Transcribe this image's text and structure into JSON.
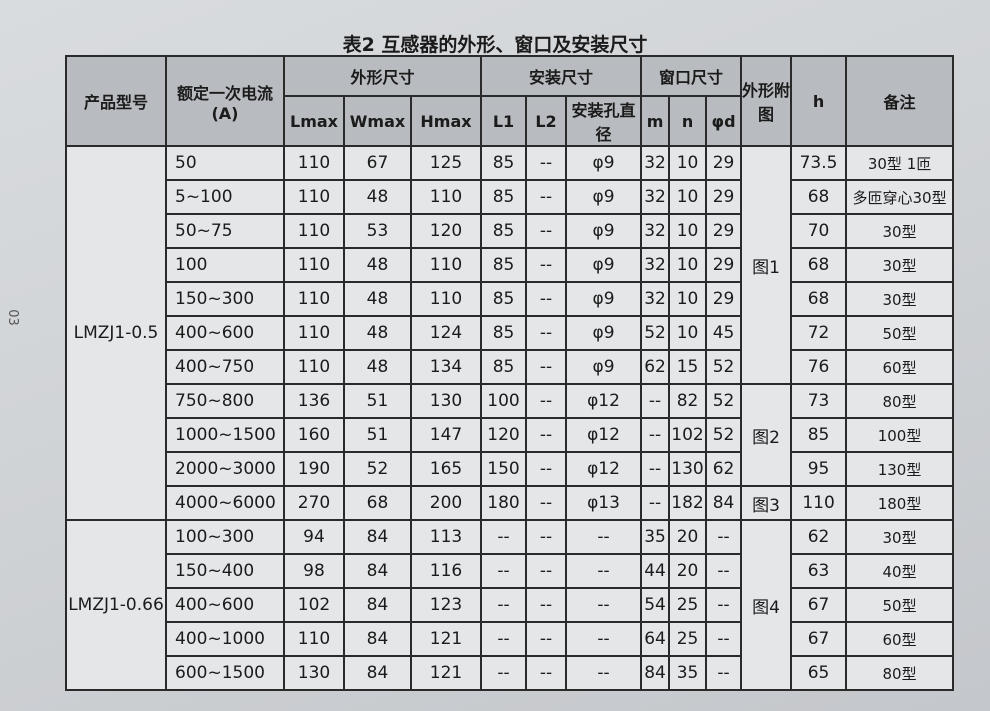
{
  "title": "表2 互感器的外形、窗口及安装尺寸",
  "page_number": "03",
  "headers": {
    "model": "产品型号",
    "current": "额定一次电流(A)",
    "outline": "外形尺寸",
    "lmax": "Lmax",
    "wmax": "Wmax",
    "hmax": "Hmax",
    "mount": "安装尺寸",
    "l1": "L1",
    "l2": "L2",
    "hole": "安装孔直径",
    "window": "窗口尺寸",
    "m": "m",
    "n": "n",
    "d": "φd",
    "figure": "外形附图",
    "h": "h",
    "note": "备注"
  },
  "groups": [
    {
      "model": "LMZJ1-0.5",
      "rows": [
        {
          "current": "50",
          "lmax": "110",
          "wmax": "67",
          "hmax": "125",
          "l1": "85",
          "l2": "--",
          "hole": "φ9",
          "m": "32",
          "n": "10",
          "d": "29",
          "h": "73.5",
          "note": "30型 1匝"
        },
        {
          "current": "5~100",
          "lmax": "110",
          "wmax": "48",
          "hmax": "110",
          "l1": "85",
          "l2": "--",
          "hole": "φ9",
          "m": "32",
          "n": "10",
          "d": "29",
          "h": "68",
          "note": "多匝穿心30型"
        },
        {
          "current": "50~75",
          "lmax": "110",
          "wmax": "53",
          "hmax": "120",
          "l1": "85",
          "l2": "--",
          "hole": "φ9",
          "m": "32",
          "n": "10",
          "d": "29",
          "h": "70",
          "note": "30型"
        },
        {
          "current": "100",
          "lmax": "110",
          "wmax": "48",
          "hmax": "110",
          "l1": "85",
          "l2": "--",
          "hole": "φ9",
          "m": "32",
          "n": "10",
          "d": "29",
          "h": "68",
          "note": "30型"
        },
        {
          "current": "150~300",
          "lmax": "110",
          "wmax": "48",
          "hmax": "110",
          "l1": "85",
          "l2": "--",
          "hole": "φ9",
          "m": "32",
          "n": "10",
          "d": "29",
          "h": "68",
          "note": "30型"
        },
        {
          "current": "400~600",
          "lmax": "110",
          "wmax": "48",
          "hmax": "124",
          "l1": "85",
          "l2": "--",
          "hole": "φ9",
          "m": "52",
          "n": "10",
          "d": "45",
          "h": "72",
          "note": "50型"
        },
        {
          "current": "400~750",
          "lmax": "110",
          "wmax": "48",
          "hmax": "134",
          "l1": "85",
          "l2": "--",
          "hole": "φ9",
          "m": "62",
          "n": "15",
          "d": "52",
          "h": "76",
          "note": "60型"
        },
        {
          "current": "750~800",
          "lmax": "136",
          "wmax": "51",
          "hmax": "130",
          "l1": "100",
          "l2": "--",
          "hole": "φ12",
          "m": "--",
          "n": "82",
          "d": "52",
          "h": "73",
          "note": "80型"
        },
        {
          "current": "1000~1500",
          "lmax": "160",
          "wmax": "51",
          "hmax": "147",
          "l1": "120",
          "l2": "--",
          "hole": "φ12",
          "m": "--",
          "n": "102",
          "d": "52",
          "h": "85",
          "note": "100型"
        },
        {
          "current": "2000~3000",
          "lmax": "190",
          "wmax": "52",
          "hmax": "165",
          "l1": "150",
          "l2": "--",
          "hole": "φ12",
          "m": "--",
          "n": "130",
          "d": "62",
          "h": "95",
          "note": "130型"
        },
        {
          "current": "4000~6000",
          "lmax": "270",
          "wmax": "68",
          "hmax": "200",
          "l1": "180",
          "l2": "--",
          "hole": "φ13",
          "m": "--",
          "n": "182",
          "d": "84",
          "h": "110",
          "note": "180型"
        }
      ]
    },
    {
      "model": "LMZJ1-0.66",
      "rows": [
        {
          "current": "100~300",
          "lmax": "94",
          "wmax": "84",
          "hmax": "113",
          "l1": "--",
          "l2": "--",
          "hole": "--",
          "m": "35",
          "n": "20",
          "d": "--",
          "h": "62",
          "note": "30型"
        },
        {
          "current": "150~400",
          "lmax": "98",
          "wmax": "84",
          "hmax": "116",
          "l1": "--",
          "l2": "--",
          "hole": "--",
          "m": "44",
          "n": "20",
          "d": "--",
          "h": "63",
          "note": "40型"
        },
        {
          "current": "400~600",
          "lmax": "102",
          "wmax": "84",
          "hmax": "123",
          "l1": "--",
          "l2": "--",
          "hole": "--",
          "m": "54",
          "n": "25",
          "d": "--",
          "h": "67",
          "note": "50型"
        },
        {
          "current": "400~1000",
          "lmax": "110",
          "wmax": "84",
          "hmax": "121",
          "l1": "--",
          "l2": "--",
          "hole": "--",
          "m": "64",
          "n": "25",
          "d": "--",
          "h": "67",
          "note": "60型"
        },
        {
          "current": "600~1500",
          "lmax": "130",
          "wmax": "84",
          "hmax": "121",
          "l1": "--",
          "l2": "--",
          "hole": "--",
          "m": "84",
          "n": "35",
          "d": "--",
          "h": "65",
          "note": "80型"
        }
      ]
    }
  ],
  "figures": [
    {
      "label": "图1",
      "span": 7
    },
    {
      "label": "图2",
      "span": 3
    },
    {
      "label": "图3",
      "span": 1
    },
    {
      "label": "图4",
      "span": 5
    }
  ]
}
